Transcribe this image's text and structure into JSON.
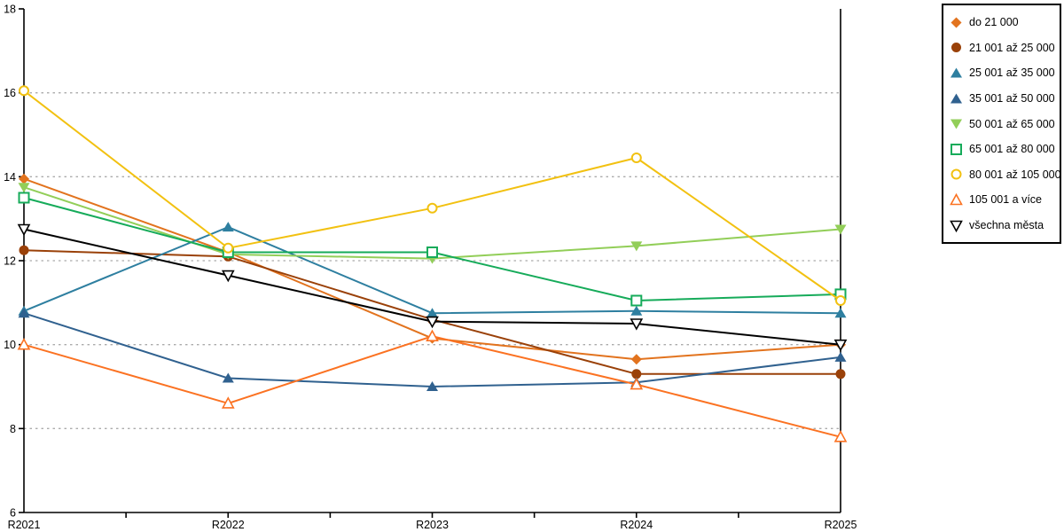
{
  "chart_data": {
    "type": "line",
    "title": "",
    "xlabel": "",
    "ylabel": "",
    "categories": [
      "R2021",
      "R2022",
      "R2023",
      "R2024",
      "R2025"
    ],
    "ylim": [
      6,
      18
    ],
    "yticks": [
      6,
      8,
      10,
      12,
      14,
      16,
      18
    ],
    "grid": "dashed horizontal",
    "legend_position": "right",
    "series": [
      {
        "name": "do 21 000",
        "color": "#E2731E",
        "marker": "diamond",
        "values": [
          13.95,
          12.2,
          10.15,
          9.65,
          10.0
        ]
      },
      {
        "name": "21 001 až 25 000",
        "color": "#9A4109",
        "marker": "circle",
        "values": [
          12.25,
          12.1,
          10.6,
          9.3,
          9.3
        ]
      },
      {
        "name": "25 001 až 35 000",
        "color": "#2E7FA0",
        "marker": "triangle-up",
        "values": [
          10.8,
          12.8,
          10.75,
          10.8,
          10.75
        ]
      },
      {
        "name": "35 001 až 50 000",
        "color": "#30618F",
        "marker": "triangle-up",
        "values": [
          10.75,
          9.2,
          9.0,
          9.1,
          9.7
        ]
      },
      {
        "name": "50 001 až 65 000",
        "color": "#92CE58",
        "marker": "triangle-down",
        "values": [
          13.75,
          12.15,
          12.05,
          12.35,
          12.75
        ]
      },
      {
        "name": "65 001 až 80 000",
        "color": "#16AB5A",
        "marker": "square-open",
        "values": [
          13.5,
          12.2,
          12.2,
          11.05,
          11.2
        ]
      },
      {
        "name": "80 001 až 105 000",
        "color": "#F2C111",
        "marker": "circle-open",
        "values": [
          16.05,
          12.3,
          13.25,
          14.45,
          11.05
        ]
      },
      {
        "name": "105 001 a více",
        "color": "#FB7222",
        "marker": "triangle-up-open",
        "values": [
          10.0,
          8.6,
          10.2,
          9.05,
          7.8
        ]
      },
      {
        "name": "všechna města",
        "color": "#000000",
        "marker": "triangle-down-open",
        "values": [
          12.75,
          11.65,
          10.55,
          10.5,
          10.0
        ]
      }
    ]
  },
  "colors": {
    "background": "#ffffff",
    "gridline": "#ababab",
    "axis": "#000000"
  }
}
